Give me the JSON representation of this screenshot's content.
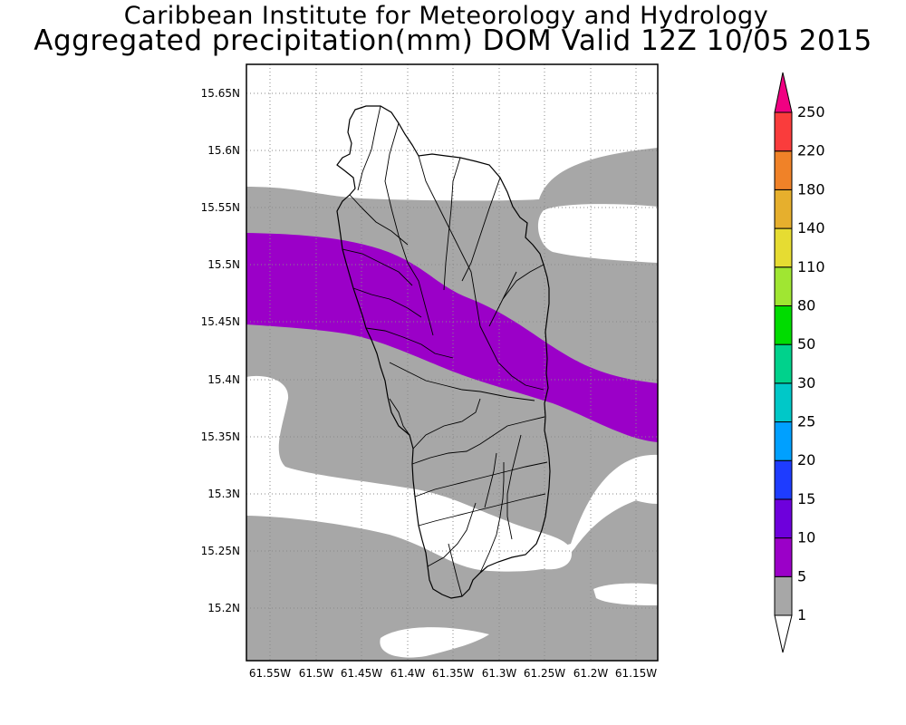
{
  "title": {
    "line1": "Caribbean Institute for Meteorology and Hydrology",
    "line2": "Aggregated precipitation(mm) DOM Valid 12Z 10/05 2015"
  },
  "map": {
    "region": "Dominica",
    "lat_labels": [
      "15.65N",
      "15.6N",
      "15.55N",
      "15.5N",
      "15.45N",
      "15.4N",
      "15.35N",
      "15.3N",
      "15.25N",
      "15.2N"
    ],
    "lon_labels": [
      "61.55W",
      "61.5W",
      "61.45W",
      "61.4W",
      "61.35W",
      "61.3W",
      "61.25W",
      "61.2W",
      "61.15W"
    ],
    "grid": "dotted",
    "shading_colors": {
      "1-5": "#a7a7a7",
      "5-10": "#9b00c8"
    }
  },
  "colorbar": {
    "labels": [
      "1",
      "5",
      "10",
      "15",
      "20",
      "25",
      "30",
      "50",
      "80",
      "110",
      "140",
      "180",
      "220",
      "250"
    ],
    "colors": [
      "#a7a7a7",
      "#9b00c8",
      "#6e00dc",
      "#1e3cff",
      "#00a0ff",
      "#00c8c8",
      "#00d28c",
      "#00dc00",
      "#a0e632",
      "#e6dc32",
      "#e6af2d",
      "#f08228",
      "#fa3c3c",
      "#f00082"
    ]
  }
}
